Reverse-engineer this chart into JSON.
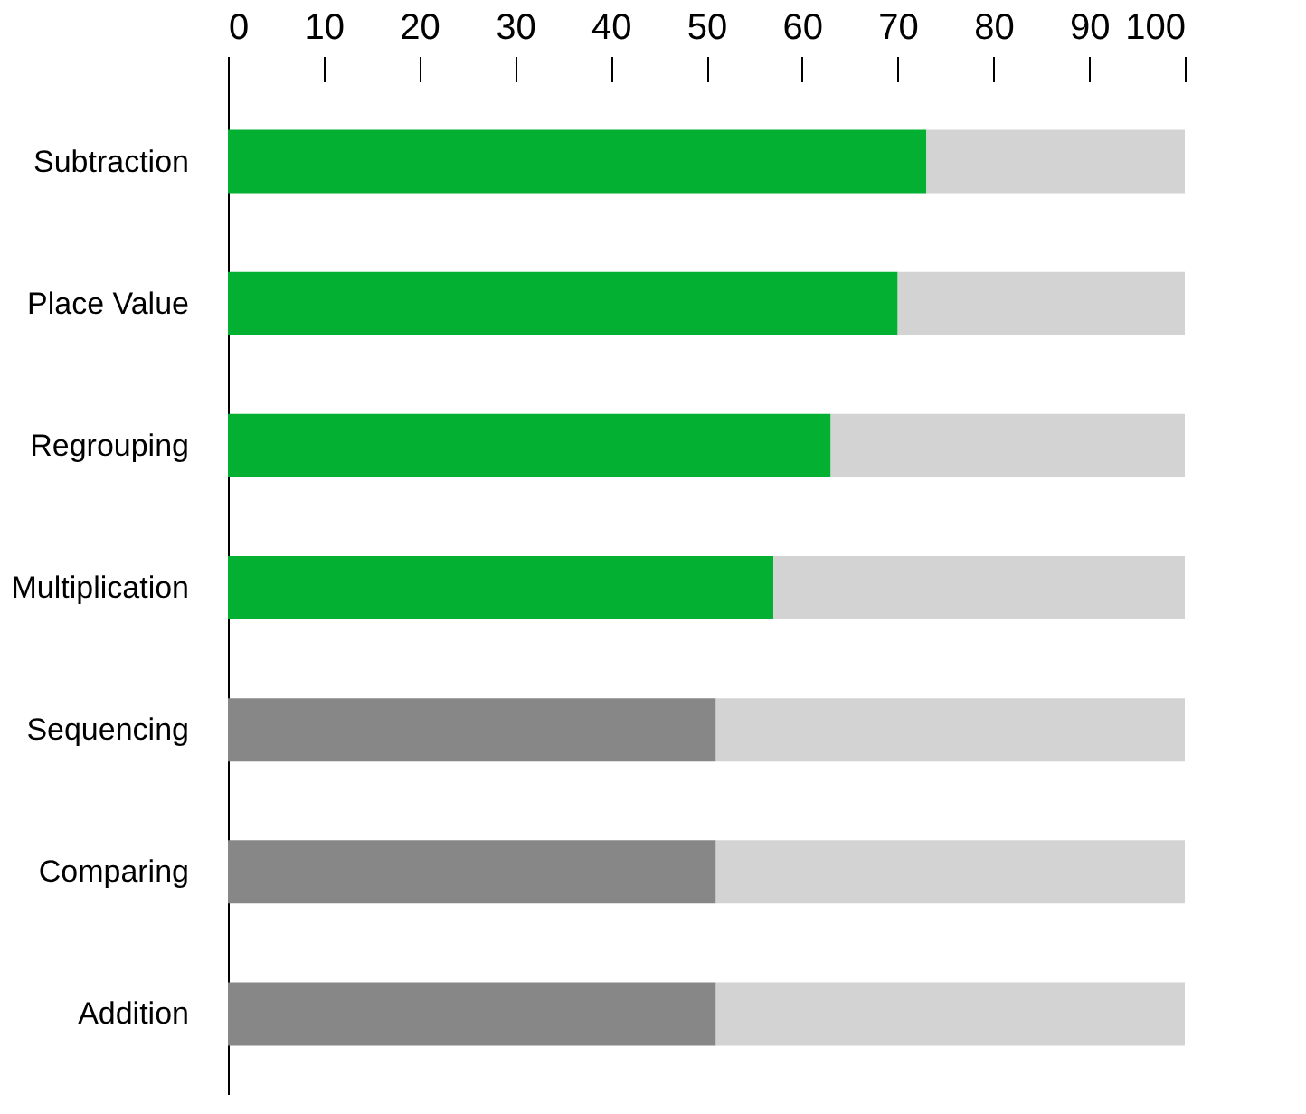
{
  "chart_data": {
    "type": "bar",
    "orientation": "horizontal",
    "stacked": true,
    "categories": [
      "Subtraction",
      "Place Value",
      "Regrouping",
      "Multiplication",
      "Sequencing",
      "Comparing",
      "Addition"
    ],
    "series": [
      {
        "colors": [
          "#03b032",
          "#03b032",
          "#03b032",
          "#03b032",
          "#878787",
          "#878787",
          "#878787"
        ],
        "values": [
          73,
          70,
          63,
          57,
          51,
          51,
          51
        ]
      },
      {
        "color": "#d3d3d3",
        "values": [
          27,
          30,
          37,
          43,
          49,
          49,
          49
        ]
      }
    ],
    "xlim": [
      0,
      100
    ],
    "xticks": [
      0,
      10,
      20,
      30,
      40,
      50,
      60,
      70,
      80,
      90,
      100
    ],
    "grid": false
  }
}
